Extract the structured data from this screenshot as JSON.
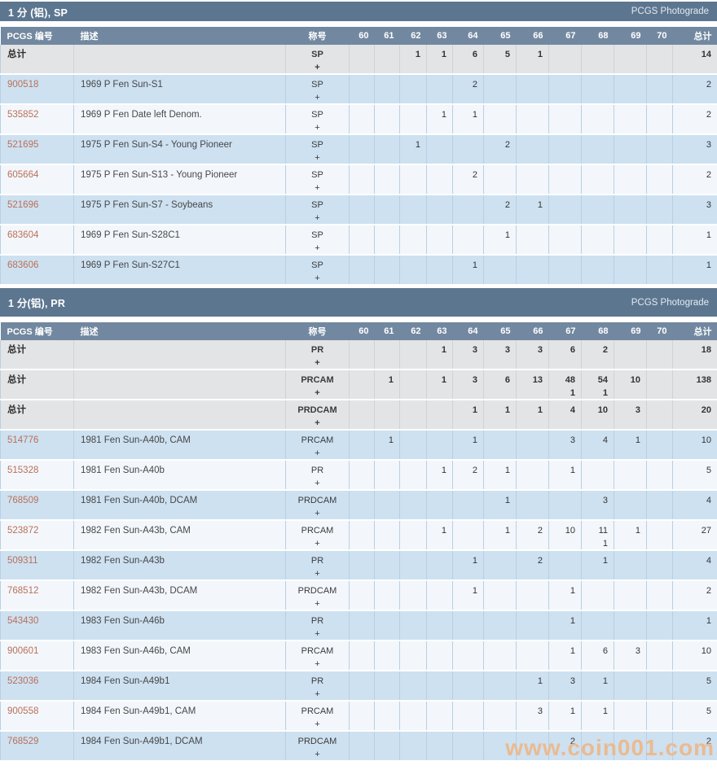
{
  "watermark": "www.coin001.com",
  "colors": {
    "section_bar": "#5d7690",
    "column_header": "#7288a0",
    "total_row_bg": "#e3e4e6",
    "row_blue": "#cde1f1",
    "row_white": "#f3f7fb",
    "grid_border": "#b9cfe2",
    "pcgs_link": "#bb6f58",
    "watermark_color": "#edb88b"
  },
  "columns": [
    "PCGS 编号",
    "描述",
    "称号",
    "60",
    "61",
    "62",
    "63",
    "64",
    "65",
    "66",
    "67",
    "68",
    "69",
    "70",
    "总计"
  ],
  "tables": [
    {
      "title": "1 分 (铝), SP",
      "photograde_label": "PCGS Photograde",
      "rows": [
        {
          "is_total": true,
          "id": "总计",
          "desc": "",
          "desig": "SP",
          "plus": "+",
          "g": [
            "",
            "",
            "1",
            "1",
            "6",
            "5",
            "1",
            "",
            "",
            "",
            ""
          ],
          "total": "14"
        },
        {
          "is_total": false,
          "id": "900518",
          "desc": "1969 P Fen Sun-S1",
          "desig": "SP",
          "plus": "+",
          "g": [
            "",
            "",
            "",
            "",
            "2",
            "",
            "",
            "",
            "",
            "",
            ""
          ],
          "total": "2"
        },
        {
          "is_total": false,
          "id": "535852",
          "desc": "1969 P Fen Date left Denom.",
          "desig": "SP",
          "plus": "+",
          "g": [
            "",
            "",
            "",
            "1",
            "1",
            "",
            "",
            "",
            "",
            "",
            ""
          ],
          "total": "2"
        },
        {
          "is_total": false,
          "id": "521695",
          "desc": "1975 P Fen Sun-S4 - Young Pioneer",
          "desig": "SP",
          "plus": "+",
          "g": [
            "",
            "",
            "1",
            "",
            "",
            "2",
            "",
            "",
            "",
            "",
            ""
          ],
          "total": "3"
        },
        {
          "is_total": false,
          "id": "605664",
          "desc": "1975 P Fen Sun-S13 - Young Pioneer",
          "desig": "SP",
          "plus": "+",
          "g": [
            "",
            "",
            "",
            "",
            "2",
            "",
            "",
            "",
            "",
            "",
            ""
          ],
          "total": "2"
        },
        {
          "is_total": false,
          "id": "521696",
          "desc": "1975 P Fen Sun-S7 - Soybeans",
          "desig": "SP",
          "plus": "+",
          "g": [
            "",
            "",
            "",
            "",
            "",
            "2",
            "1",
            "",
            "",
            "",
            ""
          ],
          "total": "3"
        },
        {
          "is_total": false,
          "id": "683604",
          "desc": "1969 P Fen Sun-S28C1",
          "desig": "SP",
          "plus": "+",
          "g": [
            "",
            "",
            "",
            "",
            "",
            "1",
            "",
            "",
            "",
            "",
            ""
          ],
          "total": "1"
        },
        {
          "is_total": false,
          "id": "683606",
          "desc": "1969 P Fen Sun-S27C1",
          "desig": "SP",
          "plus": "+",
          "g": [
            "",
            "",
            "",
            "",
            "1",
            "",
            "",
            "",
            "",
            "",
            ""
          ],
          "total": "1"
        }
      ]
    },
    {
      "title": "1 分(铝), PR",
      "photograde_label": "PCGS Photograde",
      "rows": [
        {
          "is_total": true,
          "id": "总计",
          "desc": "",
          "desig": "PR",
          "plus": "+",
          "g": [
            "",
            "",
            "",
            "1",
            "3",
            "3",
            "3",
            "6",
            "2",
            "",
            ""
          ],
          "total": "18"
        },
        {
          "is_total": true,
          "id": "总计",
          "desc": "",
          "desig": "PRCAM",
          "plus": "+",
          "g": [
            "",
            "1",
            "",
            "1",
            "3",
            "6",
            "13",
            "48",
            "54",
            "10",
            ""
          ],
          "gp": [
            "",
            "",
            "",
            "",
            "",
            "",
            "",
            "1",
            "1",
            "",
            ""
          ],
          "total": "138"
        },
        {
          "is_total": true,
          "id": "总计",
          "desc": "",
          "desig": "PRDCAM",
          "plus": "+",
          "g": [
            "",
            "",
            "",
            "",
            "1",
            "1",
            "1",
            "4",
            "10",
            "3",
            ""
          ],
          "total": "20"
        },
        {
          "is_total": false,
          "id": "514776",
          "desc": "1981 Fen Sun-A40b, CAM",
          "desig": "PRCAM",
          "plus": "+",
          "g": [
            "",
            "1",
            "",
            "",
            "1",
            "",
            "",
            "3",
            "4",
            "1",
            ""
          ],
          "total": "10"
        },
        {
          "is_total": false,
          "id": "515328",
          "desc": "1981 Fen Sun-A40b",
          "desig": "PR",
          "plus": "+",
          "g": [
            "",
            "",
            "",
            "1",
            "2",
            "1",
            "",
            "1",
            "",
            "",
            ""
          ],
          "total": "5"
        },
        {
          "is_total": false,
          "id": "768509",
          "desc": "1981 Fen Sun-A40b, DCAM",
          "desig": "PRDCAM",
          "plus": "+",
          "g": [
            "",
            "",
            "",
            "",
            "",
            "1",
            "",
            "",
            "3",
            "",
            ""
          ],
          "total": "4"
        },
        {
          "is_total": false,
          "id": "523872",
          "desc": "1982 Fen Sun-A43b, CAM",
          "desig": "PRCAM",
          "plus": "+",
          "g": [
            "",
            "",
            "",
            "1",
            "",
            "1",
            "2",
            "10",
            "11",
            "1",
            ""
          ],
          "gp": [
            "",
            "",
            "",
            "",
            "",
            "",
            "",
            "",
            "1",
            "",
            ""
          ],
          "total": "27"
        },
        {
          "is_total": false,
          "id": "509311",
          "desc": "1982 Fen Sun-A43b",
          "desig": "PR",
          "plus": "+",
          "g": [
            "",
            "",
            "",
            "",
            "1",
            "",
            "2",
            "",
            "1",
            "",
            ""
          ],
          "total": "4"
        },
        {
          "is_total": false,
          "id": "768512",
          "desc": "1982 Fen Sun-A43b, DCAM",
          "desig": "PRDCAM",
          "plus": "+",
          "g": [
            "",
            "",
            "",
            "",
            "1",
            "",
            "",
            "1",
            "",
            "",
            ""
          ],
          "total": "2"
        },
        {
          "is_total": false,
          "id": "543430",
          "desc": "1983 Fen Sun-A46b",
          "desig": "PR",
          "plus": "+",
          "g": [
            "",
            "",
            "",
            "",
            "",
            "",
            "",
            "1",
            "",
            "",
            ""
          ],
          "total": "1"
        },
        {
          "is_total": false,
          "id": "900601",
          "desc": "1983 Fen Sun-A46b, CAM",
          "desig": "PRCAM",
          "plus": "+",
          "g": [
            "",
            "",
            "",
            "",
            "",
            "",
            "",
            "1",
            "6",
            "3",
            ""
          ],
          "total": "10"
        },
        {
          "is_total": false,
          "id": "523036",
          "desc": "1984 Fen Sun-A49b1",
          "desig": "PR",
          "plus": "+",
          "g": [
            "",
            "",
            "",
            "",
            "",
            "",
            "1",
            "3",
            "1",
            "",
            ""
          ],
          "total": "5"
        },
        {
          "is_total": false,
          "id": "900558",
          "desc": "1984 Fen Sun-A49b1, CAM",
          "desig": "PRCAM",
          "plus": "+",
          "g": [
            "",
            "",
            "",
            "",
            "",
            "",
            "3",
            "1",
            "1",
            "",
            ""
          ],
          "total": "5"
        },
        {
          "is_total": false,
          "id": "768529",
          "desc": "1984 Fen Sun-A49b1, DCAM",
          "desig": "PRDCAM",
          "plus": "+",
          "g": [
            "",
            "",
            "",
            "",
            "",
            "",
            "",
            "2",
            "",
            "",
            ""
          ],
          "total": "2"
        }
      ]
    }
  ]
}
